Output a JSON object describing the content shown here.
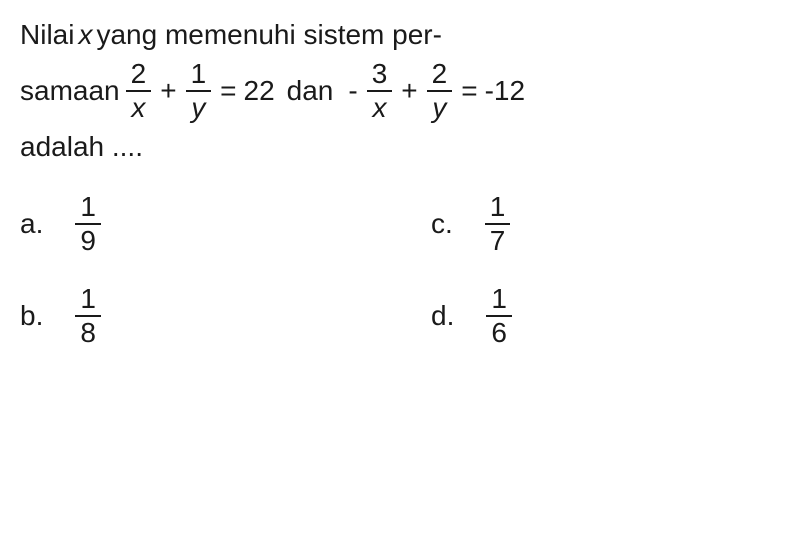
{
  "question": {
    "line1_part1": "Nilai ",
    "line1_var": "x",
    "line1_part2": " yang memenuhi sistem per-",
    "line2_word1": "samaan",
    "line2_word2": "dan",
    "line3_word": "adalah ....",
    "eq1": {
      "f1_num": "2",
      "f1_den": "x",
      "op1": "+",
      "f2_num": "1",
      "f2_den": "y",
      "eq": "=",
      "rhs": "22"
    },
    "eq2": {
      "neg": "-",
      "f1_num": "3",
      "f1_den": "x",
      "op1": "+",
      "f2_num": "2",
      "f2_den": "y",
      "eq": "=",
      "rhs": "-12"
    }
  },
  "options": {
    "a": {
      "letter": "a.",
      "num": "1",
      "den": "9"
    },
    "b": {
      "letter": "b.",
      "num": "1",
      "den": "8"
    },
    "c": {
      "letter": "c.",
      "num": "1",
      "den": "7"
    },
    "d": {
      "letter": "d.",
      "num": "1",
      "den": "6"
    }
  },
  "colors": {
    "text": "#1a1a1a",
    "background": "#ffffff"
  },
  "fonts": {
    "body_size_pt": 28,
    "family": "Arial"
  }
}
